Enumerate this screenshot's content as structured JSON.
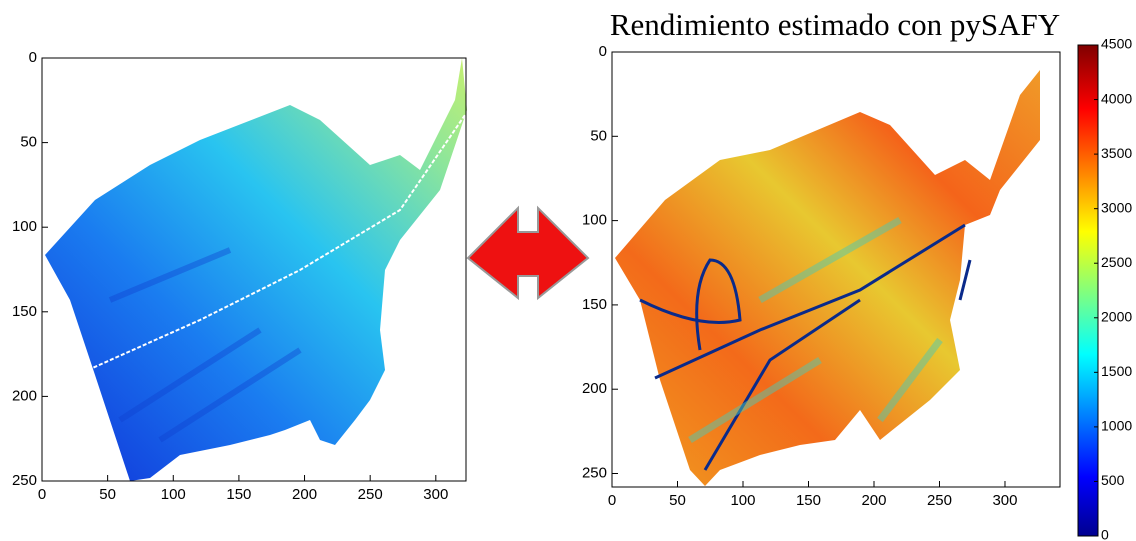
{
  "chart_data": [
    {
      "type": "raster",
      "xlim": [
        0,
        323
      ],
      "ylim": [
        250,
        0
      ],
      "xticks": [
        0,
        50,
        100,
        150,
        200,
        250,
        300
      ],
      "yticks": [
        0,
        50,
        100,
        150,
        200,
        250
      ]
    },
    {
      "type": "raster",
      "title": "Rendimiento estimado con pySAFY",
      "xlim": [
        0,
        342
      ],
      "ylim": [
        258,
        0
      ],
      "xticks": [
        0,
        50,
        100,
        150,
        200,
        250,
        300
      ],
      "yticks": [
        0,
        50,
        100,
        150,
        200,
        250
      ],
      "colorbar": {
        "lim": [
          0,
          4500
        ],
        "ticks": [
          0,
          500,
          1000,
          1500,
          2000,
          2500,
          3000,
          3500,
          4000,
          4500
        ]
      }
    }
  ]
}
